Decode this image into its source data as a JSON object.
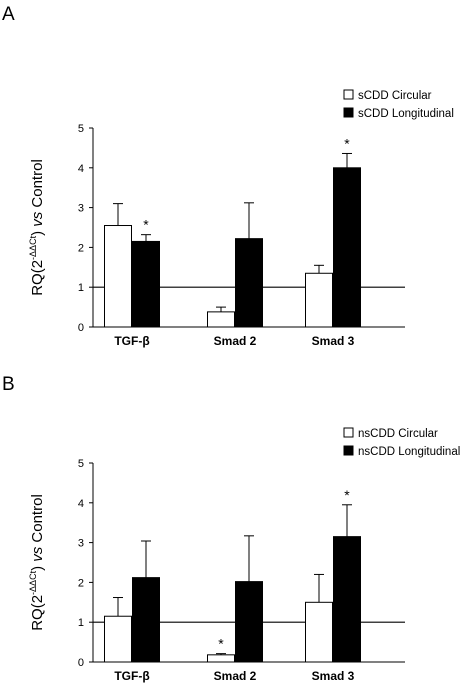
{
  "chart_data": [
    {
      "type": "bar",
      "panel": "A",
      "categories": [
        "TGF-β",
        "Smad 2",
        "Smad 3"
      ],
      "series": [
        {
          "name": "sCDD Circular",
          "values": [
            2.55,
            0.38,
            1.35
          ],
          "errors": [
            0.55,
            0.12,
            0.2
          ],
          "color": "#ffffff",
          "stars": [
            "",
            "",
            ""
          ]
        },
        {
          "name": "sCDD Longitudinal",
          "values": [
            2.15,
            2.22,
            4.0
          ],
          "errors": [
            0.17,
            0.9,
            0.36
          ],
          "color": "#000000",
          "stars": [
            "*",
            "",
            "*"
          ]
        }
      ],
      "ylabel_main": "RQ(2",
      "ylabel_sup": "-ΔΔCt",
      "ylabel_rest_a": ") ",
      "ylabel_vs": "vs",
      "ylabel_rest_b": " Control",
      "ylim": [
        0,
        5
      ],
      "yticks": [
        0,
        1,
        2,
        3,
        4,
        5
      ],
      "reference_line": 1,
      "legend_position": "top-right"
    },
    {
      "type": "bar",
      "panel": "B",
      "categories": [
        "TGF-β",
        "Smad 2",
        "Smad 3"
      ],
      "series": [
        {
          "name": "nsCDD Circular",
          "values": [
            1.15,
            0.18,
            1.5
          ],
          "errors": [
            0.47,
            0.03,
            0.7
          ],
          "color": "#ffffff",
          "stars": [
            "",
            "*",
            ""
          ]
        },
        {
          "name": "nsCDD Longitudinal",
          "values": [
            2.12,
            2.02,
            3.15
          ],
          "errors": [
            0.92,
            1.15,
            0.8
          ],
          "color": "#000000",
          "stars": [
            "",
            "",
            "*"
          ]
        }
      ],
      "ylabel_main": "RQ(2",
      "ylabel_sup": "-ΔΔCt",
      "ylabel_rest_a": ") ",
      "ylabel_vs": "vs",
      "ylabel_rest_b": " Control",
      "ylim": [
        0,
        5
      ],
      "yticks": [
        0,
        1,
        2,
        3,
        4,
        5
      ],
      "reference_line": 1,
      "legend_position": "top-right"
    }
  ]
}
